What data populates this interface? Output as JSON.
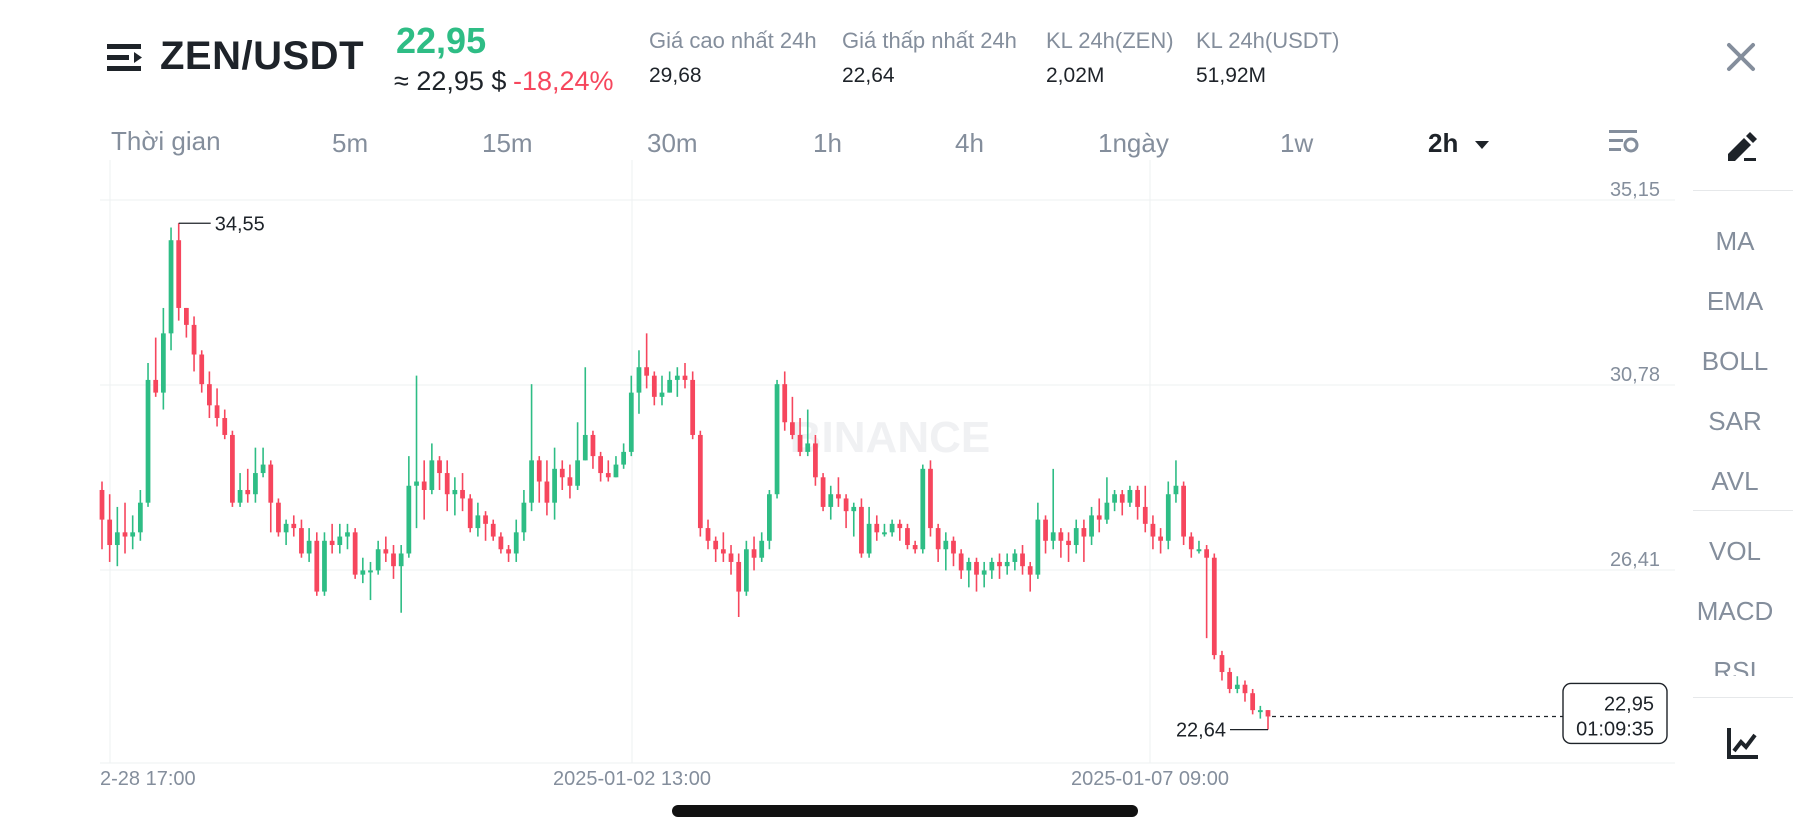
{
  "header": {
    "pair": "ZEN/USDT",
    "price": "22,95",
    "approx_price": "≈ 22,95 $",
    "change_pct": "-18,24%",
    "stats": [
      {
        "label": "Giá cao nhất 24h",
        "value": "29,68"
      },
      {
        "label": "Giá thấp nhất 24h",
        "value": "22,64"
      },
      {
        "label": "KL 24h(ZEN)",
        "value": "2,02M"
      },
      {
        "label": "KL 24h(USDT)",
        "value": "51,92M"
      }
    ]
  },
  "timeframes": {
    "label": "Thời gian",
    "items": [
      "5m",
      "15m",
      "30m",
      "1h",
      "4h",
      "1ngày",
      "1w"
    ],
    "active": "2h"
  },
  "sidebar": {
    "indicators": [
      "MA",
      "EMA",
      "BOLL",
      "SAR",
      "AVL",
      "VOL",
      "MACD",
      "RSI"
    ]
  },
  "watermark": "BINANCE",
  "colors": {
    "up": "#2ebd85",
    "down": "#f6465d",
    "grid": "#eef0f2",
    "text_muted": "#848e9c"
  },
  "icons": [
    "menu-icon",
    "close-icon",
    "chart-settings-icon",
    "draw-tool-icon",
    "indicator-chart-icon"
  ],
  "chart_data": {
    "type": "candlestick",
    "interval": "2h",
    "y_ticks": [
      "35,15",
      "30,78",
      "26,41"
    ],
    "x_ticks": [
      "2-28 17:00",
      "2025-01-02 13:00",
      "2025-01-07 09:00"
    ],
    "high_marker": "34,55",
    "low_marker": "22,64",
    "last_price_label": "22,95",
    "countdown": "01:09:35",
    "ylim": [
      22.0,
      36.0
    ],
    "candles": [
      [
        28.3,
        27.6,
        28.5,
        26.9
      ],
      [
        27.6,
        27.0,
        28.2,
        26.6
      ],
      [
        27.0,
        27.3,
        27.9,
        26.5
      ],
      [
        27.3,
        27.2,
        28.0,
        26.8
      ],
      [
        27.2,
        27.3,
        27.7,
        26.9
      ],
      [
        27.3,
        28.0,
        28.3,
        27.1
      ],
      [
        28.0,
        30.9,
        31.3,
        27.9
      ],
      [
        30.9,
        30.6,
        31.9,
        30.5
      ],
      [
        30.6,
        32.0,
        32.6,
        30.2
      ],
      [
        32.0,
        34.2,
        34.5,
        31.6
      ],
      [
        34.2,
        32.6,
        34.6,
        32.3
      ],
      [
        32.6,
        32.2,
        32.6,
        31.9
      ],
      [
        32.2,
        31.5,
        32.4,
        31.1
      ],
      [
        31.5,
        30.8,
        31.6,
        30.6
      ],
      [
        30.8,
        30.3,
        31.1,
        30.0
      ],
      [
        30.3,
        30.0,
        30.7,
        29.8
      ],
      [
        30.0,
        29.6,
        30.2,
        29.5
      ],
      [
        29.6,
        28.0,
        29.7,
        27.9
      ],
      [
        28.0,
        28.3,
        28.7,
        27.9
      ],
      [
        28.3,
        28.2,
        28.8,
        28.0
      ],
      [
        28.2,
        28.7,
        29.3,
        28.0
      ],
      [
        28.7,
        28.9,
        29.3,
        28.6
      ],
      [
        28.9,
        28.0,
        29.0,
        27.3
      ],
      [
        28.0,
        27.3,
        28.1,
        27.2
      ],
      [
        27.3,
        27.5,
        27.6,
        27.0
      ],
      [
        27.5,
        27.4,
        27.7,
        27.2
      ],
      [
        27.4,
        26.8,
        27.6,
        26.7
      ],
      [
        26.8,
        27.1,
        27.4,
        26.6
      ],
      [
        27.1,
        25.9,
        27.3,
        25.8
      ],
      [
        25.9,
        27.1,
        27.3,
        25.8
      ],
      [
        27.1,
        27.0,
        27.5,
        26.8
      ],
      [
        27.0,
        27.2,
        27.5,
        26.8
      ],
      [
        27.2,
        27.3,
        27.5,
        26.9
      ],
      [
        27.3,
        26.3,
        27.4,
        26.2
      ],
      [
        26.3,
        26.4,
        26.7,
        26.1
      ],
      [
        26.4,
        26.4,
        26.6,
        25.7
      ],
      [
        26.4,
        26.9,
        27.1,
        26.3
      ],
      [
        26.9,
        26.8,
        27.2,
        26.6
      ],
      [
        26.8,
        26.5,
        27.0,
        26.2
      ],
      [
        26.5,
        26.8,
        27.0,
        25.4
      ],
      [
        26.8,
        28.4,
        29.1,
        26.7
      ],
      [
        28.4,
        28.5,
        31.0,
        27.4
      ],
      [
        28.5,
        28.3,
        29.0,
        27.6
      ],
      [
        28.3,
        29.0,
        29.4,
        28.2
      ],
      [
        29.0,
        28.7,
        29.1,
        28.3
      ],
      [
        28.7,
        28.2,
        29.0,
        27.8
      ],
      [
        28.2,
        28.3,
        28.6,
        27.7
      ],
      [
        28.3,
        28.1,
        28.7,
        27.8
      ],
      [
        28.1,
        27.4,
        28.2,
        27.3
      ],
      [
        27.4,
        27.7,
        28.0,
        27.2
      ],
      [
        27.7,
        27.5,
        27.8,
        27.1
      ],
      [
        27.5,
        27.2,
        27.6,
        27.1
      ],
      [
        27.2,
        26.9,
        27.3,
        26.8
      ],
      [
        26.9,
        26.8,
        27.0,
        26.6
      ],
      [
        26.8,
        27.3,
        27.6,
        26.6
      ],
      [
        27.3,
        28.0,
        28.3,
        27.1
      ],
      [
        28.0,
        29.0,
        30.8,
        27.8
      ],
      [
        29.0,
        28.5,
        29.1,
        28.0
      ],
      [
        28.5,
        28.0,
        29.0,
        27.7
      ],
      [
        28.0,
        28.8,
        29.3,
        27.6
      ],
      [
        28.8,
        28.6,
        29.0,
        28.3
      ],
      [
        28.6,
        28.4,
        28.9,
        28.1
      ],
      [
        28.4,
        29.0,
        29.9,
        28.3
      ],
      [
        29.0,
        29.6,
        31.2,
        29.0
      ],
      [
        29.6,
        29.1,
        29.7,
        28.8
      ],
      [
        29.1,
        28.7,
        29.2,
        28.5
      ],
      [
        28.7,
        28.6,
        29.0,
        28.5
      ],
      [
        28.6,
        28.9,
        29.1,
        28.6
      ],
      [
        28.9,
        29.2,
        29.4,
        28.8
      ],
      [
        29.2,
        30.6,
        31.0,
        29.1
      ],
      [
        30.6,
        31.2,
        31.6,
        30.1
      ],
      [
        31.2,
        31.0,
        32.0,
        30.7
      ],
      [
        31.0,
        30.5,
        31.1,
        30.3
      ],
      [
        30.5,
        30.6,
        31.0,
        30.3
      ],
      [
        30.6,
        30.9,
        31.1,
        30.6
      ],
      [
        30.9,
        31.0,
        31.2,
        30.5
      ],
      [
        31.0,
        30.9,
        31.3,
        30.7
      ],
      [
        30.9,
        29.6,
        31.1,
        29.5
      ],
      [
        29.6,
        27.4,
        29.7,
        27.2
      ],
      [
        27.4,
        27.1,
        27.6,
        26.9
      ],
      [
        27.1,
        26.9,
        27.2,
        26.6
      ],
      [
        26.9,
        26.8,
        27.3,
        26.6
      ],
      [
        26.8,
        26.6,
        27.0,
        26.3
      ],
      [
        26.6,
        25.9,
        26.8,
        25.3
      ],
      [
        25.9,
        26.9,
        27.1,
        25.8
      ],
      [
        26.9,
        26.7,
        27.2,
        26.4
      ],
      [
        26.7,
        27.1,
        27.3,
        26.6
      ],
      [
        27.1,
        28.2,
        28.3,
        26.9
      ],
      [
        28.2,
        30.8,
        30.9,
        28.1
      ],
      [
        30.8,
        29.9,
        31.1,
        29.7
      ],
      [
        29.9,
        29.6,
        30.5,
        29.5
      ],
      [
        29.6,
        29.2,
        30.0,
        29.1
      ],
      [
        29.2,
        29.4,
        30.2,
        29.1
      ],
      [
        29.4,
        28.6,
        29.6,
        28.4
      ],
      [
        28.6,
        27.9,
        28.7,
        27.8
      ],
      [
        27.9,
        28.2,
        28.4,
        27.6
      ],
      [
        28.2,
        28.1,
        28.6,
        27.9
      ],
      [
        28.1,
        27.8,
        28.2,
        27.4
      ],
      [
        27.8,
        27.9,
        28.0,
        27.2
      ],
      [
        27.9,
        26.8,
        28.1,
        26.7
      ],
      [
        26.8,
        27.5,
        27.9,
        26.7
      ],
      [
        27.5,
        27.3,
        27.7,
        27.1
      ],
      [
        27.3,
        27.3,
        27.5,
        27.2
      ],
      [
        27.3,
        27.5,
        27.6,
        27.2
      ],
      [
        27.5,
        27.4,
        27.6,
        27.1
      ],
      [
        27.4,
        27.0,
        27.5,
        26.9
      ],
      [
        27.0,
        26.9,
        27.1,
        26.8
      ],
      [
        26.9,
        28.8,
        28.9,
        26.8
      ],
      [
        28.8,
        27.4,
        29.0,
        27.2
      ],
      [
        27.4,
        26.9,
        27.5,
        26.6
      ],
      [
        26.9,
        27.1,
        27.3,
        26.4
      ],
      [
        27.1,
        26.8,
        27.2,
        26.5
      ],
      [
        26.8,
        26.4,
        26.9,
        26.2
      ],
      [
        26.4,
        26.6,
        26.7,
        26.0
      ],
      [
        26.6,
        26.3,
        26.7,
        25.9
      ],
      [
        26.3,
        26.4,
        26.6,
        26.0
      ],
      [
        26.4,
        26.6,
        26.7,
        26.2
      ],
      [
        26.6,
        26.5,
        26.8,
        26.2
      ],
      [
        26.5,
        26.6,
        26.8,
        26.3
      ],
      [
        26.6,
        26.8,
        26.9,
        26.4
      ],
      [
        26.8,
        26.5,
        27.0,
        26.3
      ],
      [
        26.5,
        26.3,
        26.6,
        25.9
      ],
      [
        26.3,
        27.6,
        28.0,
        26.2
      ],
      [
        27.6,
        27.1,
        27.7,
        26.8
      ],
      [
        27.1,
        27.3,
        28.8,
        26.9
      ],
      [
        27.3,
        27.1,
        27.4,
        26.7
      ],
      [
        27.1,
        27.0,
        27.3,
        26.6
      ],
      [
        27.0,
        27.4,
        27.6,
        26.8
      ],
      [
        27.4,
        27.2,
        27.6,
        26.6
      ],
      [
        27.2,
        27.7,
        27.9,
        27.0
      ],
      [
        27.7,
        27.6,
        28.1,
        27.3
      ],
      [
        27.6,
        28.0,
        28.6,
        27.5
      ],
      [
        28.0,
        28.2,
        28.3,
        27.8
      ],
      [
        28.2,
        28.0,
        28.3,
        27.7
      ],
      [
        28.0,
        28.3,
        28.4,
        27.9
      ],
      [
        28.3,
        27.9,
        28.4,
        27.6
      ],
      [
        27.9,
        27.5,
        28.4,
        27.3
      ],
      [
        27.5,
        27.2,
        27.7,
        26.9
      ],
      [
        27.2,
        27.1,
        27.4,
        26.8
      ],
      [
        27.1,
        28.2,
        28.5,
        26.9
      ],
      [
        28.2,
        28.4,
        29.0,
        28.0
      ],
      [
        28.4,
        27.2,
        28.5,
        27.0
      ],
      [
        27.2,
        26.9,
        27.3,
        26.7
      ],
      [
        26.9,
        26.9,
        27.1,
        26.8
      ],
      [
        26.9,
        26.7,
        27.0,
        24.8
      ],
      [
        26.7,
        24.4,
        26.8,
        24.3
      ],
      [
        24.4,
        24.0,
        24.5,
        23.8
      ],
      [
        24.0,
        23.6,
        24.1,
        23.5
      ],
      [
        23.6,
        23.7,
        23.9,
        23.5
      ],
      [
        23.7,
        23.5,
        23.8,
        23.3
      ],
      [
        23.5,
        23.1,
        23.6,
        23.0
      ],
      [
        23.1,
        23.1,
        23.2,
        22.9
      ],
      [
        23.1,
        22.95,
        23.1,
        22.64
      ]
    ]
  }
}
